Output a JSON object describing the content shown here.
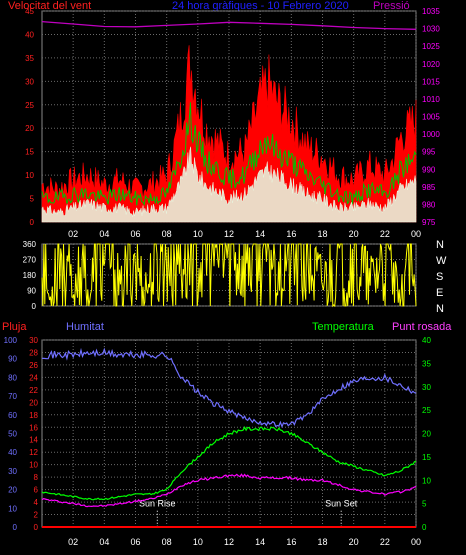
{
  "header": {
    "title": "24 hora gràfiques - 10 Febrero 2020",
    "left_label": "Velocitat del vent",
    "right_label": "Pressió"
  },
  "colors": {
    "wind_gust": "#ff0000",
    "wind_avg": "#00c000",
    "wind_base": "#e8ffe8",
    "pressure": "#c000c0",
    "direction": "#ffff00",
    "rain": "#ff0000",
    "humidity": "#7070ff",
    "temperature": "#00ff00",
    "dewpoint": "#ff00ff",
    "title": "#2020ff",
    "axis_left": "#ff2020",
    "axis_right_top": "#ff00ff",
    "axis_right_bottom": "#00ff00",
    "axis_hum": "#7070ff",
    "axis_dir": "#ffffff",
    "grid": "#6a6a6a"
  },
  "chart_data": [
    {
      "id": "wind_pressure",
      "type": "line",
      "title": "24 hora gràfiques - 10 Febrero 2020",
      "left_axis": {
        "label": "Velocitat del vent",
        "min": 0,
        "max": 45,
        "ticks": [
          0,
          5,
          10,
          15,
          20,
          25,
          30,
          35,
          40,
          45
        ]
      },
      "right_axis": {
        "label": "Pressió",
        "min": 975,
        "max": 1035,
        "ticks": [
          975,
          980,
          985,
          990,
          995,
          1000,
          1005,
          1010,
          1015,
          1020,
          1025,
          1030,
          1035
        ]
      },
      "x_ticks": [
        "02",
        "04",
        "06",
        "08",
        "10",
        "12",
        "14",
        "16",
        "18",
        "20",
        "22",
        "00"
      ],
      "pressure_x": [
        0,
        2,
        4,
        6,
        8,
        10,
        12,
        14,
        16,
        18,
        20,
        22,
        24
      ],
      "pressure": [
        1032,
        1031.3,
        1030.6,
        1030.5,
        1030.9,
        1031.3,
        1031.8,
        1031.5,
        1031.2,
        1030.8,
        1030.3,
        1030,
        1029.8
      ],
      "wind_x": [
        0,
        1,
        2,
        3,
        4,
        5,
        6,
        7,
        8,
        8.5,
        9,
        9.5,
        10,
        10.5,
        11,
        12,
        13,
        14,
        14.5,
        15,
        16,
        17,
        18,
        19,
        20,
        21,
        22,
        22.5,
        23,
        24
      ],
      "gust": [
        8,
        7,
        9,
        10,
        8,
        9,
        7,
        8,
        10,
        16,
        24,
        34,
        26,
        20,
        18,
        14,
        15,
        26,
        30,
        26,
        22,
        16,
        14,
        10,
        9,
        12,
        10,
        13,
        18,
        22
      ],
      "average": [
        5,
        5,
        6,
        6,
        5,
        6,
        5,
        5,
        6,
        10,
        15,
        22,
        17,
        13,
        12,
        9,
        10,
        16,
        18,
        15,
        13,
        10,
        8,
        6,
        5,
        7,
        6,
        8,
        11,
        14
      ],
      "base": [
        3,
        2,
        3,
        4,
        3,
        3,
        2,
        3,
        3,
        6,
        9,
        14,
        10,
        8,
        7,
        5,
        6,
        10,
        11,
        10,
        8,
        6,
        5,
        3,
        3,
        4,
        3,
        5,
        7,
        9
      ]
    },
    {
      "id": "wind_direction",
      "type": "line",
      "left_axis": {
        "min": 0,
        "max": 360,
        "ticks": [
          0,
          90,
          180,
          270,
          360
        ]
      },
      "right_axis_labels": [
        "N",
        "W",
        "S",
        "E",
        "N"
      ],
      "x_ticks": [
        "02",
        "04",
        "06",
        "08",
        "10",
        "12",
        "14",
        "16",
        "18",
        "20",
        "22",
        "00"
      ],
      "x": [
        0,
        0.5,
        1,
        1.5,
        2,
        2.5,
        3,
        3.5,
        4,
        4.5,
        5,
        5.5,
        6,
        6.5,
        7,
        7.5,
        8,
        9,
        10,
        11,
        12,
        13,
        14,
        15,
        16,
        17,
        17.5,
        18,
        19,
        20,
        21,
        22,
        23,
        23.5,
        24
      ],
      "direction": [
        300,
        20,
        320,
        350,
        10,
        340,
        20,
        300,
        350,
        330,
        80,
        200,
        300,
        90,
        160,
        300,
        330,
        340,
        320,
        330,
        320,
        310,
        320,
        330,
        310,
        300,
        180,
        140,
        250,
        300,
        120,
        310,
        20,
        340,
        10
      ]
    },
    {
      "id": "rain_hum_temp_dew",
      "type": "line",
      "left_axis_rain": {
        "label": "Pluja",
        "min": 0,
        "max": 30,
        "ticks": [
          0,
          2,
          4,
          6,
          8,
          10,
          12,
          14,
          16,
          18,
          20,
          22,
          24,
          26,
          28,
          30
        ]
      },
      "left_axis_hum": {
        "label": "Humitat",
        "min": 0,
        "max": 100,
        "ticks": [
          0,
          10,
          20,
          30,
          40,
          50,
          60,
          70,
          80,
          90,
          100
        ]
      },
      "right_axis": {
        "label": "Temperatura",
        "min": 0,
        "max": 40,
        "ticks": [
          0,
          5,
          10,
          15,
          20,
          25,
          30,
          35,
          40
        ]
      },
      "right_label_2": "Punt rosada",
      "x_ticks": [
        "02",
        "04",
        "06",
        "08",
        "10",
        "12",
        "14",
        "16",
        "18",
        "20",
        "22",
        "00"
      ],
      "markers": [
        {
          "x": 7.4,
          "label": "Sun Rise"
        },
        {
          "x": 19.2,
          "label": "Sun Set"
        }
      ],
      "x": [
        0,
        1,
        2,
        3,
        4,
        5,
        6,
        7,
        8,
        9,
        10,
        11,
        12,
        13,
        14,
        15,
        16,
        17,
        18,
        19,
        20,
        21,
        22,
        23,
        24
      ],
      "humidity": [
        92,
        92,
        92,
        93,
        93,
        92,
        92,
        92,
        92,
        80,
        72,
        66,
        62,
        58,
        56,
        55,
        55,
        60,
        68,
        74,
        78,
        80,
        80,
        76,
        72
      ],
      "temperature": [
        7.5,
        7,
        6.5,
        6,
        6,
        6.5,
        7,
        7,
        8,
        12,
        15,
        18,
        20,
        21,
        21,
        21,
        20,
        18,
        16,
        14,
        13,
        12,
        11,
        12,
        14
      ],
      "dewpoint": [
        6,
        5.5,
        5,
        4.5,
        4.5,
        5,
        5.5,
        6,
        7,
        9,
        10,
        10.5,
        11,
        11,
        10.5,
        10.5,
        10.5,
        10,
        10,
        9,
        8,
        7.5,
        7,
        7.5,
        8.5
      ],
      "rain": [
        0,
        0,
        0,
        0,
        0,
        0,
        0,
        0,
        0,
        0,
        0,
        0,
        0,
        0,
        0,
        0,
        0,
        0,
        0,
        0,
        0,
        0,
        0,
        0,
        0
      ]
    }
  ],
  "bottom_panel": {
    "rain_label": "Pluja",
    "humidity_label": "Humitat",
    "temp_label": "Temperatura",
    "dew_label": "Punt rosada"
  },
  "direction_panel": {
    "compass": [
      "N",
      "W",
      "S",
      "E",
      "N"
    ]
  }
}
